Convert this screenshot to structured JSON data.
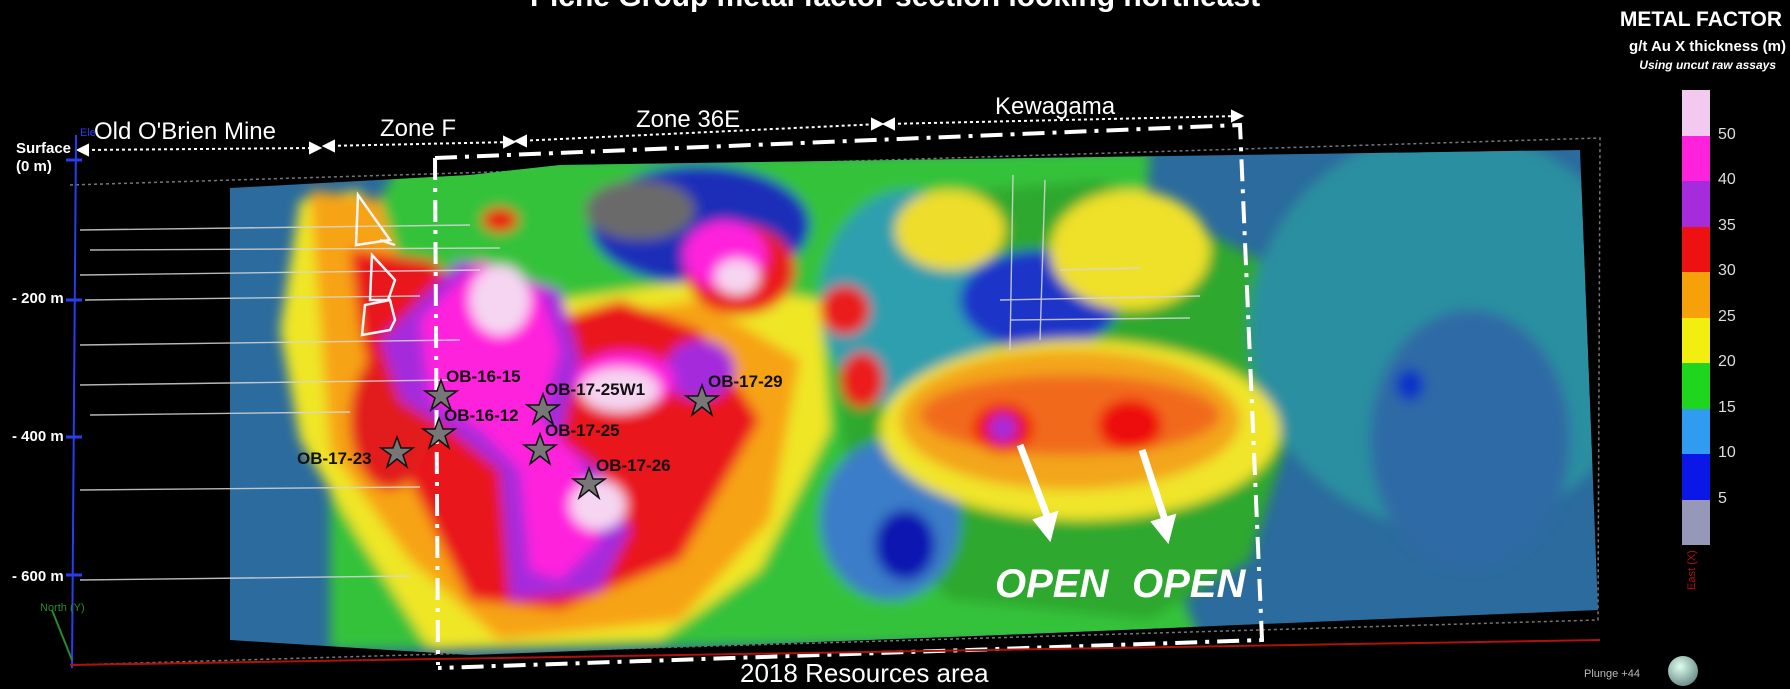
{
  "title": "Piche Group metal factor section looking northeast",
  "legend": {
    "title": "METAL FACTOR",
    "subtitle": "g/t Au X thickness (m)",
    "note": "Using uncut raw assays",
    "colors": [
      "#f3c9ef",
      "#ff22dd",
      "#a52bdc",
      "#ee1111",
      "#f7a10a",
      "#f2ee10",
      "#1ed61e",
      "#2f9cf2",
      "#0a17e6",
      "#9797b7"
    ],
    "ticks": [
      "50",
      "40",
      "35",
      "30",
      "25",
      "20",
      "15",
      "10",
      "5"
    ]
  },
  "zones": [
    {
      "label": "Old O'Brien Mine"
    },
    {
      "label": "Zone F"
    },
    {
      "label": "Zone 36E"
    },
    {
      "label": "Kewagama"
    }
  ],
  "depth_labels": [
    "Surface",
    "(0 m)",
    "- 200 m",
    "- 400 m",
    "- 600 m"
  ],
  "drill_holes": [
    "OB-16-15",
    "OB-17-25W1",
    "OB-17-29",
    "OB-16-12",
    "OB-17-25",
    "OB-17-23",
    "OB-17-26"
  ],
  "open_labels": [
    "OPEN",
    "OPEN"
  ],
  "bottom_label": "2018 Resources area",
  "axis_labels": {
    "north": "North (Y)",
    "east": "East (X)",
    "elev": "Ele",
    "plunge": "Plunge +44"
  },
  "colors": {
    "background": "#000000",
    "star": "#777777"
  }
}
